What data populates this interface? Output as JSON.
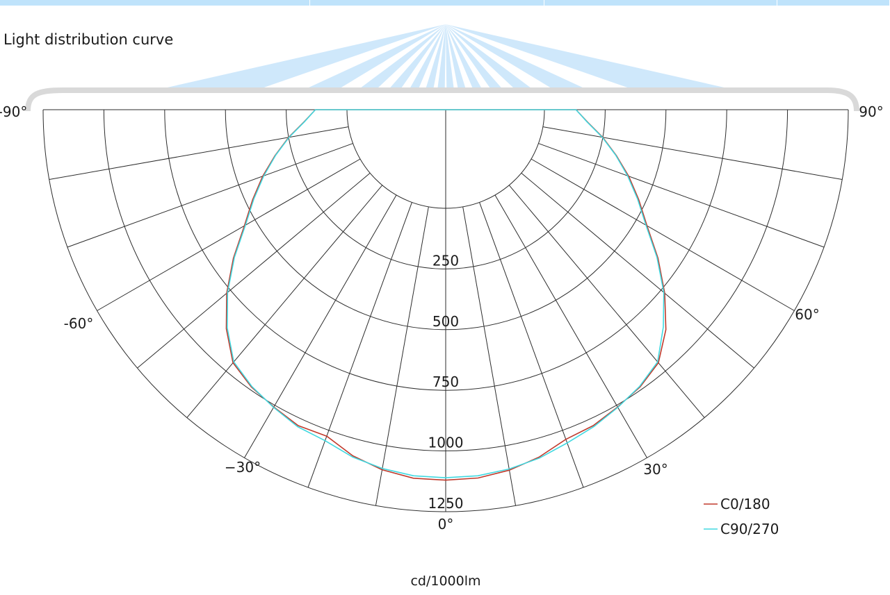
{
  "chart_data": {
    "type": "line",
    "subtype": "polar",
    "title": "Light distribution curve",
    "unit_label": "cd/1000lm",
    "radial_ticks": [
      250,
      500,
      750,
      1000,
      1250
    ],
    "radial_max": 1250,
    "angle_labels": [
      "-90°",
      "-60°",
      "−30°",
      "0°",
      "30°",
      "60°",
      "90°"
    ],
    "angle_range": [
      -90,
      90
    ],
    "grid": true,
    "legend": {
      "position": "bottom-right"
    },
    "series": [
      {
        "name": "C0/180",
        "color": "#c0392b",
        "angles": [
          0,
          5,
          10,
          15,
          20,
          25,
          30,
          35,
          40,
          45,
          50,
          55,
          60,
          65,
          70,
          75,
          80,
          85,
          90
        ],
        "right": [
          1120,
          1117,
          1102,
          1076,
          1039,
          1030,
          1008,
          988,
          955,
          875,
          770,
          660,
          550,
          470,
          395,
          320,
          250,
          180,
          130
        ],
        "left": [
          1120,
          1118,
          1100,
          1070,
          1025,
          1030,
          1008,
          988,
          955,
          870,
          770,
          660,
          550,
          470,
          395,
          320,
          250,
          180,
          130
        ]
      },
      {
        "name": "C90/270",
        "color": "#40d8e0",
        "angles": [
          0,
          5,
          10,
          15,
          20,
          25,
          30,
          35,
          40,
          45,
          50,
          55,
          60,
          65,
          70,
          75,
          80,
          85,
          90
        ],
        "right": [
          1110,
          1108,
          1097,
          1080,
          1055,
          1035,
          1010,
          985,
          950,
          860,
          765,
          655,
          545,
          465,
          390,
          318,
          248,
          178,
          130
        ],
        "left": [
          1110,
          1108,
          1095,
          1075,
          1045,
          1035,
          1010,
          985,
          950,
          865,
          765,
          655,
          545,
          465,
          390,
          318,
          248,
          178,
          130
        ]
      }
    ]
  }
}
